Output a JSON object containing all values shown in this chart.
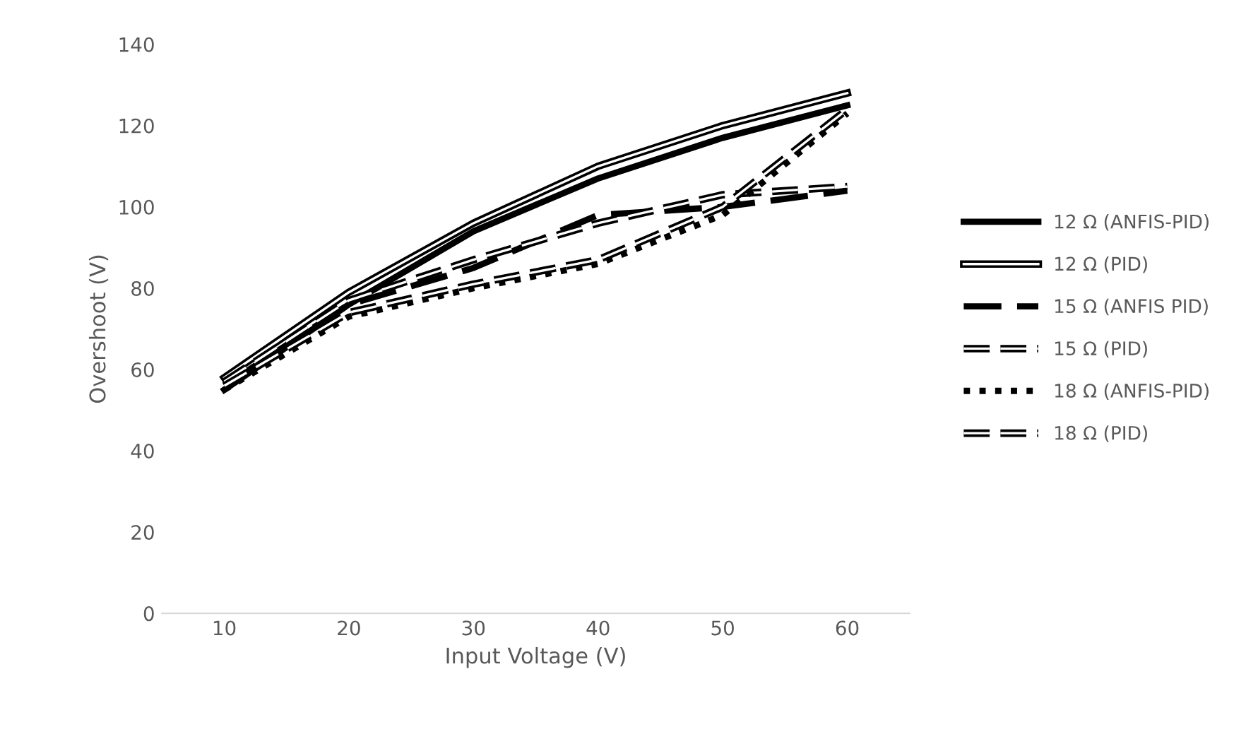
{
  "chart_data": {
    "type": "line",
    "xlabel": "Input Voltage (V)",
    "ylabel": "Overshoot (V)",
    "x": [
      10,
      20,
      30,
      40,
      50,
      60
    ],
    "xlim": [
      5,
      65
    ],
    "xticks": [
      10,
      20,
      30,
      40,
      50,
      60
    ],
    "ylim": [
      0,
      140
    ],
    "yticks": [
      0,
      20,
      40,
      60,
      80,
      100,
      120,
      140
    ],
    "grid": false,
    "legend": "right",
    "marker": "none",
    "series": [
      {
        "name": "12 Ω (ANFIS-PID)",
        "color": "#000000",
        "line_style": "solid",
        "values": [
          55,
          76,
          94,
          107,
          117,
          125
        ]
      },
      {
        "name": "12 Ω (PID)",
        "color": "#000000",
        "line_style": "solid",
        "values": [
          58,
          79,
          96,
          110,
          120,
          128
        ]
      },
      {
        "name": "15 Ω (ANFIS PID)",
        "color": "#000000",
        "line_style": "dashed",
        "values": [
          56,
          76,
          85,
          98,
          100,
          104
        ]
      },
      {
        "name": "15 Ω (PID)",
        "color": "#000000",
        "line_style": "dashed",
        "values": [
          57,
          77,
          87,
          96,
          103,
          105
        ]
      },
      {
        "name": "18 Ω (ANFIS-PID)",
        "color": "#000000",
        "line_style": "dotted",
        "values": [
          55,
          73,
          80,
          86,
          98,
          123
        ]
      },
      {
        "name": "18 Ω (PID)",
        "color": "#000000",
        "line_style": "dashed",
        "values": [
          56,
          74,
          81,
          87,
          100,
          124
        ]
      }
    ]
  }
}
